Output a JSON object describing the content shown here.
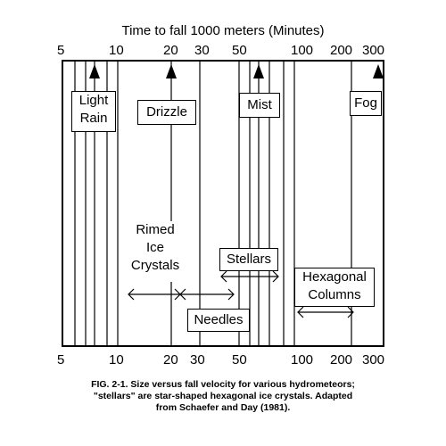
{
  "diagram": {
    "title": "Time to fall 1000 meters (Minutes)",
    "top_ticks": [
      "5",
      "10",
      "20",
      "30",
      "50",
      "100",
      "200",
      "300"
    ],
    "bottom_ticks": [
      "5",
      "10",
      "20",
      "30",
      "50",
      "100",
      "200",
      "300"
    ],
    "labels": {
      "light_rain": [
        "Light",
        "Rain"
      ],
      "drizzle": "Drizzle",
      "mist": "Mist",
      "fog": "Fog",
      "rimed_ice": [
        "Rimed",
        "Ice",
        "Crystals"
      ],
      "stellars": "Stellars",
      "needles": "Needles",
      "hexagonal": [
        "Hexagonal",
        "Columns"
      ]
    },
    "caption": [
      "FIG. 2-1.  Size versus fall velocity for various hydrometeors;",
      "\"stellars\" are star-shaped hexagonal ice crystals. Adapted",
      "from Schaefer and Day (1981)."
    ]
  }
}
